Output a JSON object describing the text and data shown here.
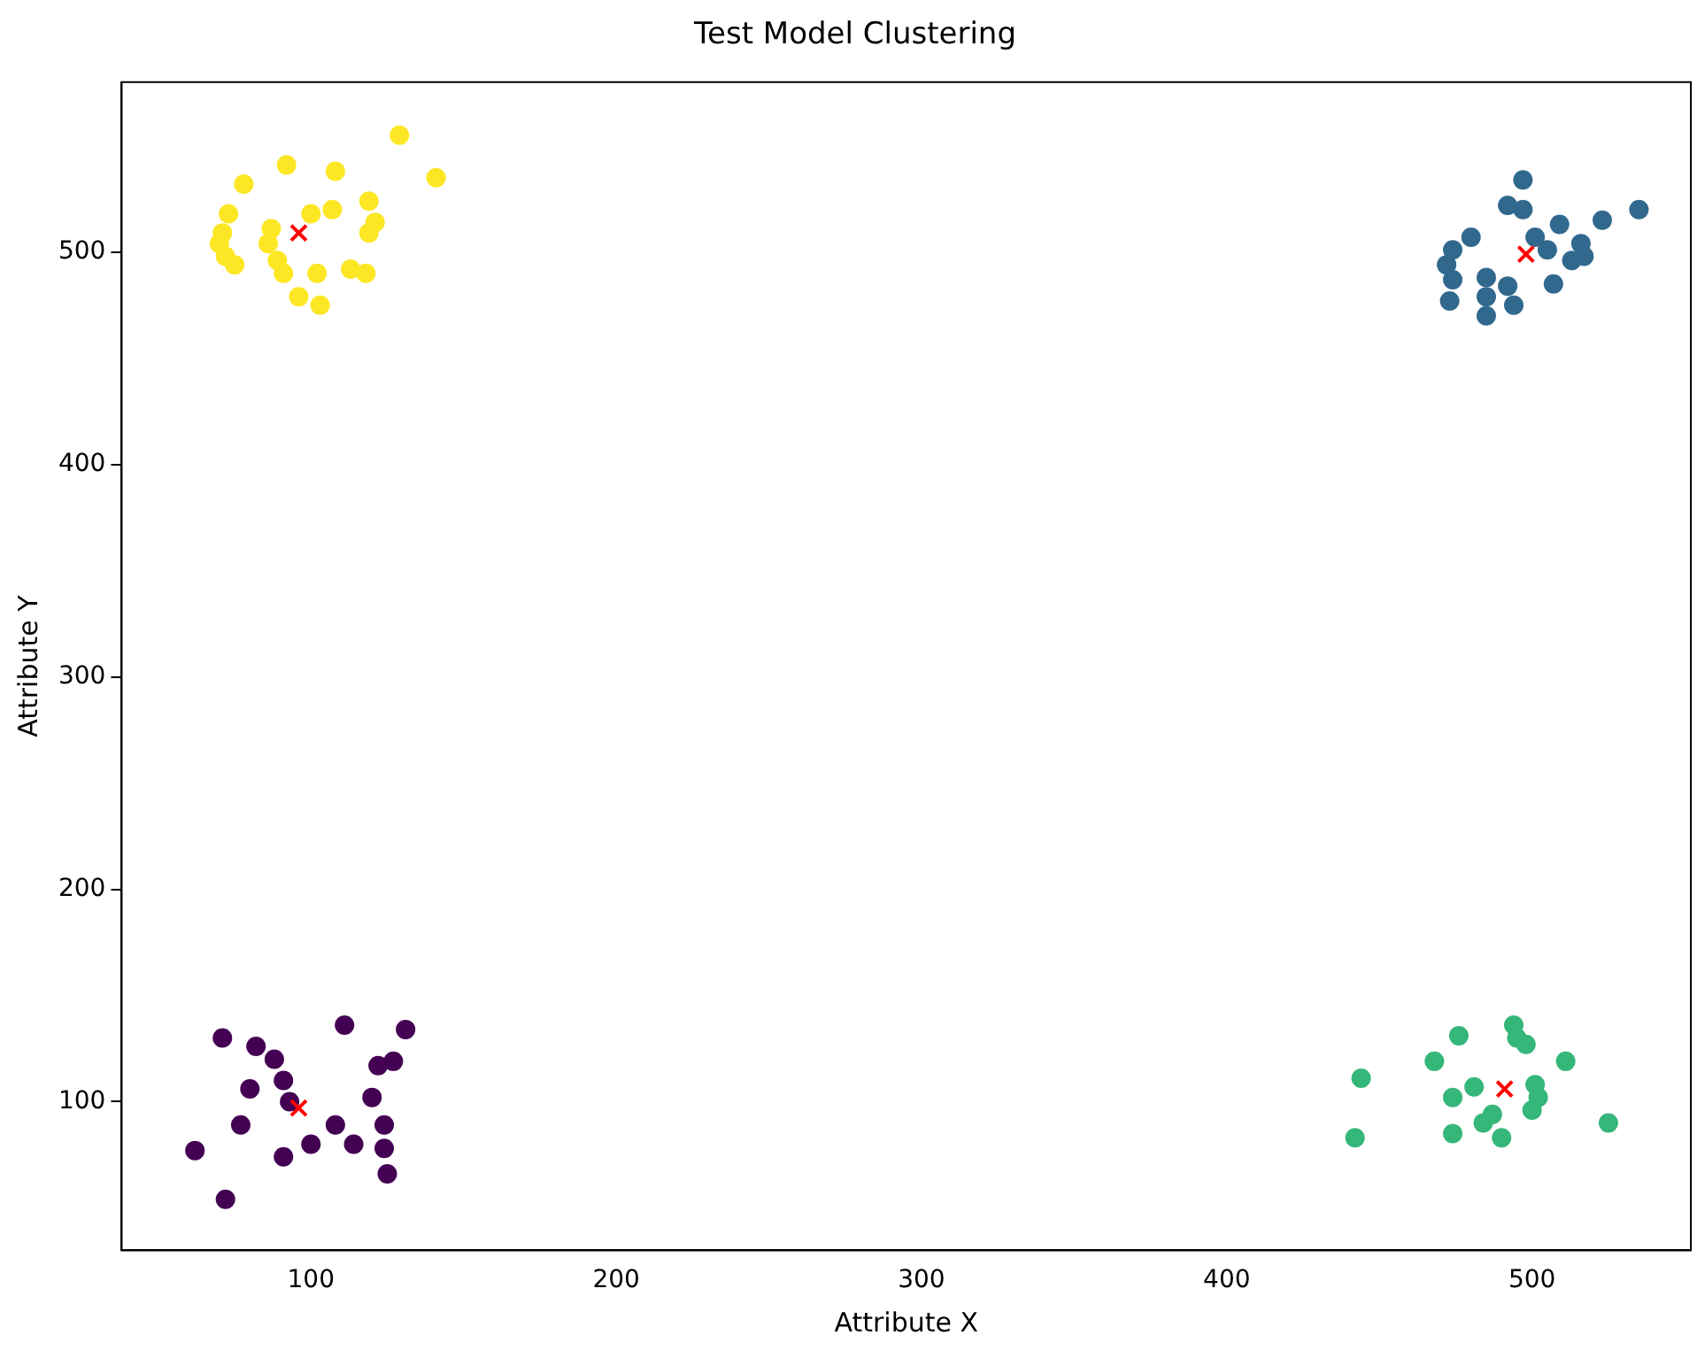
{
  "chart_data": {
    "type": "scatter",
    "title": "Test Model Clustering",
    "xlabel": "Attribute X",
    "ylabel": "Attribute Y",
    "xlim": [
      38,
      552
    ],
    "ylim": [
      30,
      580
    ],
    "xticks": [
      100,
      200,
      300,
      400,
      500
    ],
    "yticks": [
      100,
      200,
      300,
      400,
      500
    ],
    "grid": false,
    "legend": false,
    "marker": "circle",
    "series": [
      {
        "color": "#440154",
        "x": [
          71,
          111,
          131,
          82,
          88,
          91,
          80,
          93,
          122,
          127,
          120,
          108,
          100,
          77,
          62,
          91,
          114,
          124,
          124,
          125,
          72
        ],
        "values": [
          130,
          136,
          134,
          126,
          120,
          110,
          106,
          100,
          117,
          119,
          102,
          89,
          80,
          89,
          77,
          74,
          80,
          89,
          78,
          66,
          54
        ]
      },
      {
        "color": "#31688e",
        "x": [
          497,
          535,
          523,
          492,
          497,
          480,
          474,
          472,
          474,
          473,
          485,
          485,
          485,
          494,
          492,
          507,
          509,
          505,
          516,
          517,
          513,
          501
        ],
        "values": [
          534,
          520,
          515,
          522,
          520,
          507,
          501,
          494,
          487,
          477,
          488,
          479,
          470,
          475,
          484,
          485,
          513,
          501,
          504,
          498,
          496,
          507
        ]
      },
      {
        "color": "#35b779",
        "x": [
          444,
          442,
          476,
          468,
          494,
          498,
          495,
          511,
          474,
          481,
          501,
          502,
          500,
          474,
          484,
          490,
          487,
          525
        ],
        "values": [
          111,
          83,
          131,
          119,
          136,
          127,
          130,
          119,
          102,
          107,
          108,
          102,
          96,
          85,
          90,
          83,
          94,
          90
        ]
      },
      {
        "color": "#fde725",
        "x": [
          129,
          141,
          92,
          108,
          78,
          73,
          71,
          70,
          72,
          75,
          87,
          86,
          89,
          91,
          96,
          103,
          102,
          100,
          107,
          119,
          121,
          119,
          113,
          118
        ],
        "values": [
          555,
          535,
          541,
          538,
          532,
          518,
          509,
          504,
          498,
          494,
          511,
          504,
          496,
          490,
          479,
          475,
          490,
          518,
          520,
          524,
          514,
          509,
          492,
          490
        ]
      },
      {
        "color": "#ff0000",
        "marker": "cross",
        "x": [
          96,
          498,
          491,
          96
        ],
        "values": [
          97,
          499,
          106,
          509
        ]
      }
    ]
  }
}
